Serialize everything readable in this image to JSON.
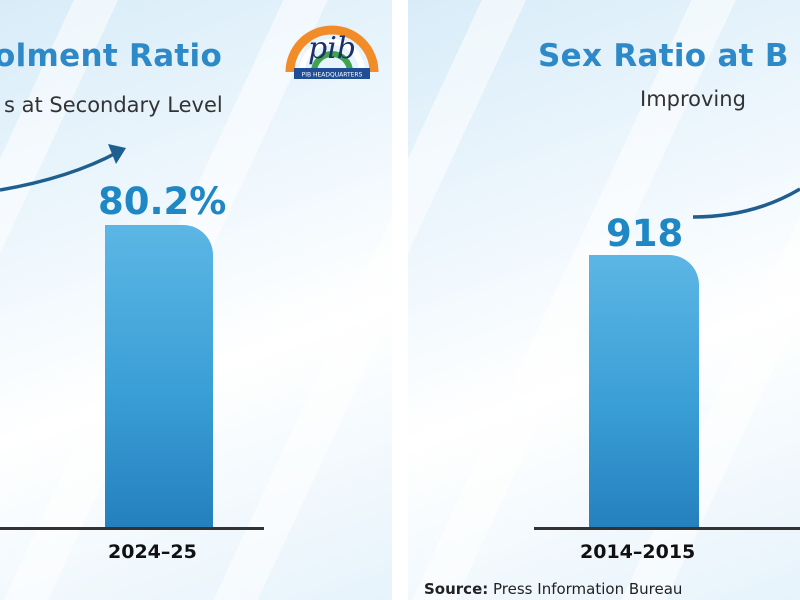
{
  "panels": [
    {
      "title": "olment Ratio",
      "subtitle": "s at Secondary Level",
      "logo": {
        "text": "pib",
        "banner": "PIB HEADQUARTERS"
      }
    },
    {
      "title": "Sex Ratio at B",
      "subtitle": "Improving"
    }
  ],
  "chart_data": [
    {
      "type": "bar",
      "title": "olment Ratio",
      "subtitle": "s at Secondary Level",
      "categories": [
        "2024–25"
      ],
      "values": [
        80.2
      ],
      "data_labels": [
        "80.2%"
      ],
      "colors": {
        "bar": "#3a9fd6",
        "text": "#1f87c4"
      }
    },
    {
      "type": "bar",
      "title": "Sex Ratio at B",
      "subtitle": "Improving",
      "categories": [
        "2014–2015"
      ],
      "values": [
        918
      ],
      "data_labels": [
        "918"
      ],
      "colors": {
        "bar": "#3a9fd6",
        "text": "#1f87c4"
      }
    }
  ],
  "source": {
    "label": "Source:",
    "text": " Press Information Bureau"
  }
}
